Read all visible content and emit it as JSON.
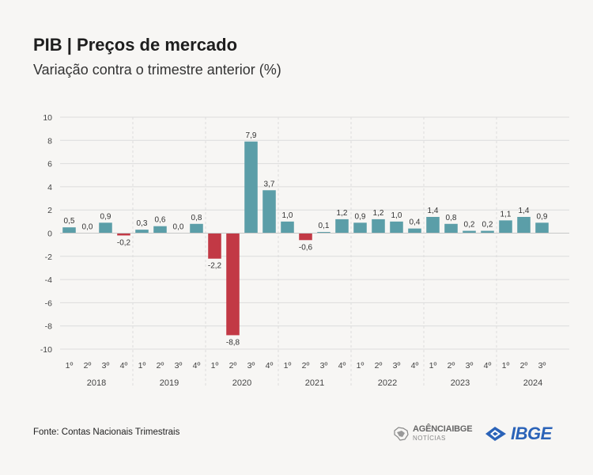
{
  "header": {
    "title": "PIB | Preços de mercado",
    "subtitle": "Variação contra o trimestre anterior (%)"
  },
  "footer": {
    "source": "Fonte: Contas Nacionais Trimestrais",
    "agencia_logo": "AGÊNCIA IBGE NOTÍCIAS",
    "ibge_logo": "IBGE"
  },
  "colors": {
    "positive": "#5b9ea8",
    "negative": "#c23945",
    "grid": "#dcdcdc",
    "text": "#444444",
    "logo_blue": "#2b63b8"
  },
  "chart_data": {
    "type": "bar",
    "title": "PIB | Preços de mercado",
    "subtitle": "Variação contra o trimestre anterior (%)",
    "ylim": [
      -10,
      10
    ],
    "y_ticks": [
      10,
      8,
      6,
      4,
      2,
      0,
      -2,
      -4,
      -6,
      -8,
      -10
    ],
    "grid": true,
    "years": [
      {
        "label": "2018",
        "quarters": [
          "1º",
          "2º",
          "3º",
          "4º"
        ]
      },
      {
        "label": "2019",
        "quarters": [
          "1º",
          "2º",
          "3º",
          "4º"
        ]
      },
      {
        "label": "2020",
        "quarters": [
          "1º",
          "2º",
          "3º",
          "4º"
        ]
      },
      {
        "label": "2021",
        "quarters": [
          "1º",
          "2º",
          "3º",
          "4º"
        ]
      },
      {
        "label": "2022",
        "quarters": [
          "1º",
          "2º",
          "3º",
          "4º"
        ]
      },
      {
        "label": "2023",
        "quarters": [
          "1º",
          "2º",
          "3º",
          "4º"
        ]
      },
      {
        "label": "2024",
        "quarters": [
          "1º",
          "2º",
          "3º"
        ]
      }
    ],
    "values": [
      0.5,
      0.0,
      0.9,
      -0.2,
      0.3,
      0.6,
      0.0,
      0.8,
      -2.2,
      -8.8,
      7.9,
      3.7,
      1.0,
      -0.6,
      0.1,
      1.2,
      0.9,
      1.2,
      1.0,
      0.4,
      1.4,
      0.8,
      0.2,
      0.2,
      1.1,
      1.4,
      0.9
    ],
    "value_labels": [
      "0,5",
      "0,0",
      "0,9",
      "-0,2",
      "0,3",
      "0,6",
      "0,0",
      "0,8",
      "-2,2",
      "-8,8",
      "7,9",
      "3,7",
      "1,0",
      "-0,6",
      "0,1",
      "1,2",
      "0,9",
      "1,2",
      "1,0",
      "0,4",
      "1,4",
      "0,8",
      "0,2",
      "0,2",
      "1,1",
      "1,4",
      "0,9"
    ]
  }
}
